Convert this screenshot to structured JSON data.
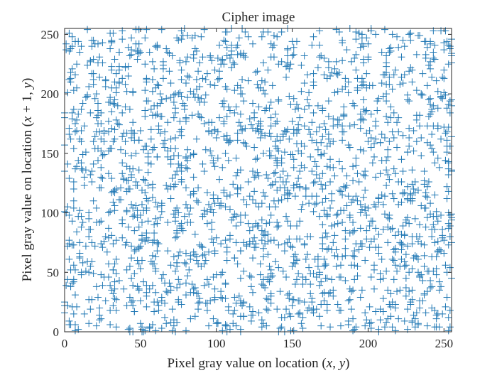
{
  "chart_data": {
    "type": "scatter",
    "title": "Cipher image",
    "xlabel": "Pixel gray value on location (x, y)",
    "xlabel_parts": [
      "Pixel gray value on location (",
      "x",
      ", ",
      "y",
      ")"
    ],
    "ylabel": "Pixel gray value on location (x + 1, y)",
    "ylabel_parts": [
      "Pixel gray value on location (",
      "x",
      " + 1, ",
      "y",
      ")"
    ],
    "xlim": [
      0,
      255
    ],
    "ylim": [
      0,
      255
    ],
    "xticks": [
      0,
      50,
      100,
      150,
      200,
      250
    ],
    "yticks": [
      0,
      50,
      100,
      150,
      200,
      250
    ],
    "xtick_labels": [
      "0",
      "50",
      "100",
      "150",
      "200",
      "250"
    ],
    "ytick_labels": [
      "0",
      "50",
      "100",
      "150",
      "200",
      "250"
    ],
    "grid": false,
    "marker": "plus",
    "color": "#1f77b4",
    "point_count": 2048,
    "distribution": "uniform",
    "points": []
  }
}
